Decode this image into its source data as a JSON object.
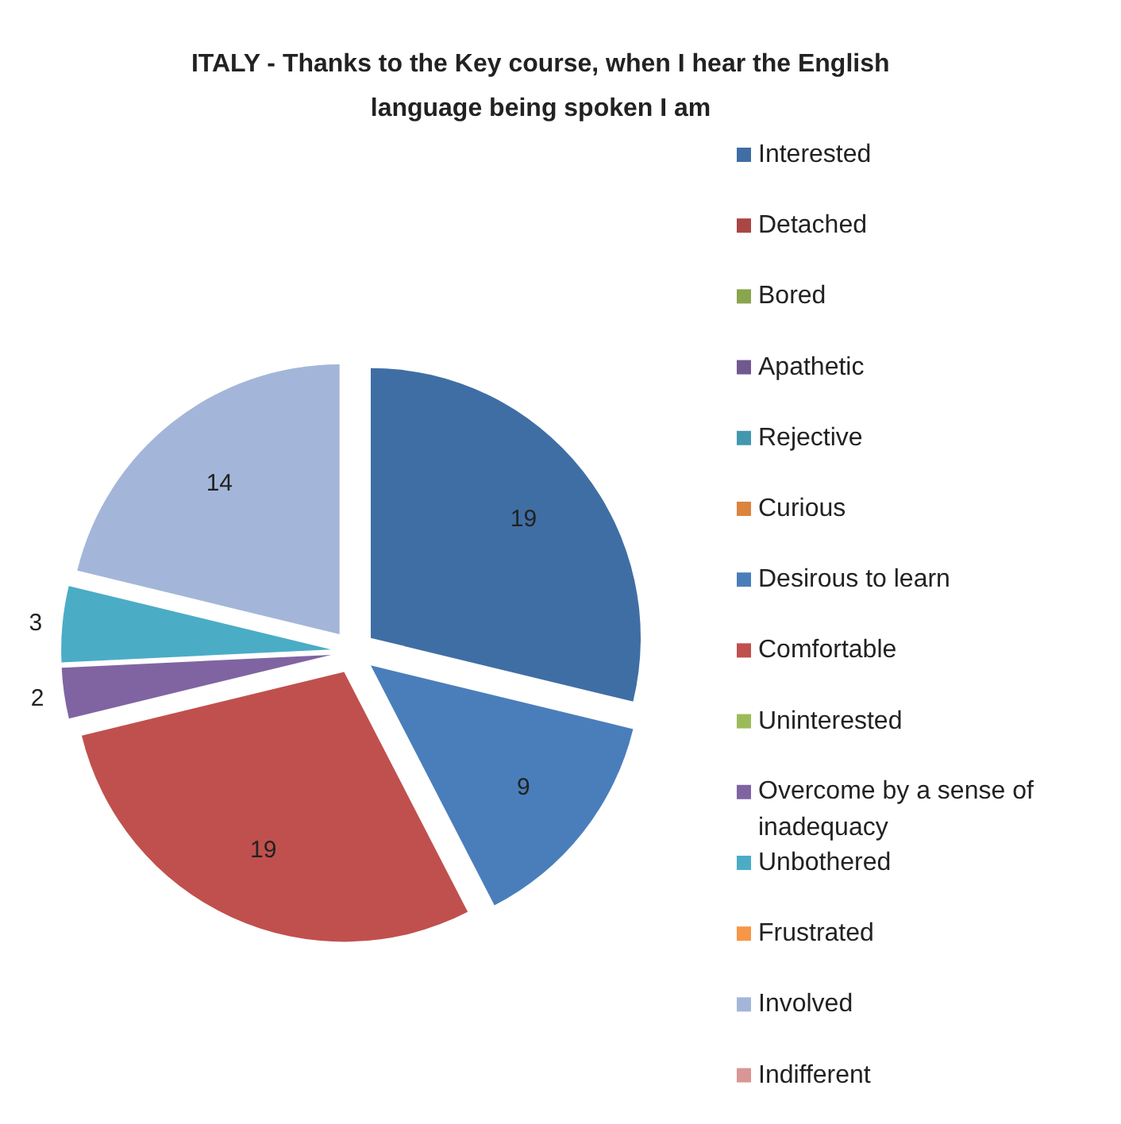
{
  "chart_data": {
    "type": "pie",
    "title": "ITALY - Thanks to the Key course, when I hear the English language being spoken I am",
    "categories": [
      "Interested",
      "Detached",
      "Bored",
      "Apathetic",
      "Rejective",
      "Curious",
      "Desirous to learn",
      "Comfortable",
      "Uninterested",
      "Overcome by a sense of inadequacy",
      "Unbothered",
      "Frustrated",
      "Involved",
      "Indifferent"
    ],
    "values": [
      19,
      0,
      0,
      0,
      0,
      0,
      9,
      19,
      0,
      2,
      3,
      0,
      14,
      0
    ],
    "value_labels": [
      "19",
      null,
      null,
      null,
      null,
      null,
      "9",
      "19",
      null,
      "2",
      "3",
      null,
      "14",
      null
    ],
    "colors": [
      "#3f6ea5",
      "#aa4643",
      "#89a54e",
      "#71588f",
      "#4198af",
      "#db843d",
      "#4a7ebb",
      "#c0504d",
      "#9bbb59",
      "#8064a2",
      "#4bacc6",
      "#f79646",
      "#a3b6d9",
      "#d99694"
    ],
    "legend": "right"
  }
}
